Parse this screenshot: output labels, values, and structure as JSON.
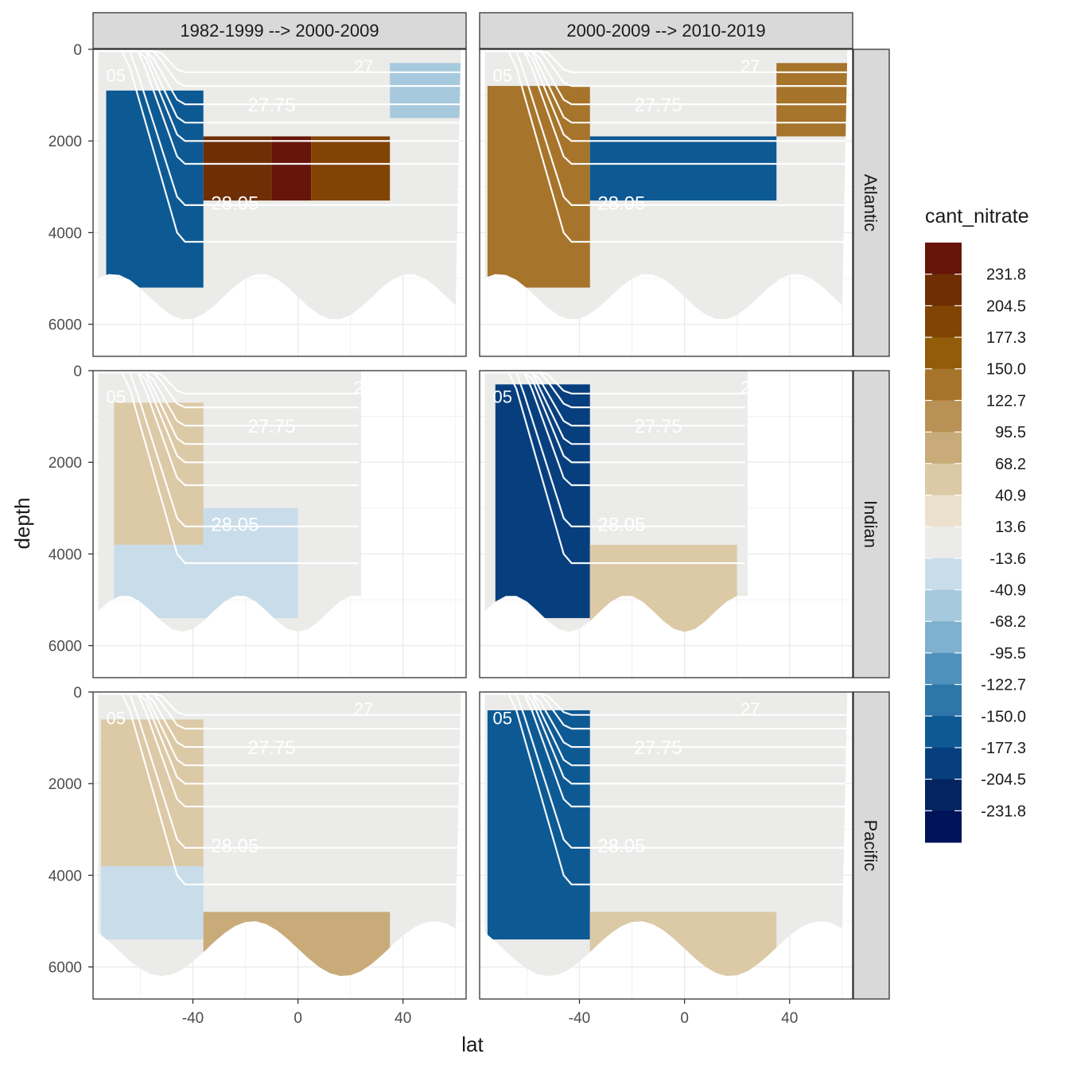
{
  "chart_data": {
    "type": "heatmap",
    "xlabel": "lat",
    "ylabel": "depth",
    "x_ticks": [
      -40,
      0,
      40
    ],
    "y_ticks": [
      0,
      2000,
      4000,
      6000
    ],
    "xlim": [
      -78,
      64
    ],
    "ylim": [
      0,
      6700
    ],
    "columns": [
      "1982-1999 --> 2000-2009",
      "2000-2009 --> 2010-2019"
    ],
    "rows": [
      "Atlantic",
      "Indian",
      "Pacific"
    ],
    "legend": {
      "title": "cant_nitrate",
      "labels": [
        "231.8",
        "204.5",
        "177.3",
        "150.0",
        "122.7",
        "95.5",
        "68.2",
        "40.9",
        "13.6",
        "-13.6",
        "-40.9",
        "-68.2",
        "-95.5",
        "-122.7",
        "-150.0",
        "-177.3",
        "-204.5",
        "-231.8"
      ],
      "colors": [
        "#67150a",
        "#6f2e04",
        "#824404",
        "#935c08",
        "#a6742a",
        "#b99154",
        "#c8ab78",
        "#dcc9a6",
        "#ece0cf",
        "#ebebe9",
        "#c9dcea",
        "#a6c9de",
        "#7fb0cf",
        "#4f92bb",
        "#2e76a9",
        "#0d5994",
        "#073f7e",
        "#04245f",
        "#02125a"
      ]
    },
    "contour_labels": {
      "upper": "27.75",
      "lower": "28.05",
      "edge": "05",
      "surface": "27"
    },
    "panels": [
      {
        "ocean": "Atlantic",
        "period": "1982-1999 --> 2000-2009",
        "cells": [
          {
            "lat": [
              -73,
              -36
            ],
            "depth": [
              900,
              5200
            ],
            "value": -165
          },
          {
            "lat": [
              -36,
              -10
            ],
            "depth": [
              1900,
              3300
            ],
            "value": 215
          },
          {
            "lat": [
              -10,
              5
            ],
            "depth": [
              1900,
              3300
            ],
            "value": 235
          },
          {
            "lat": [
              5,
              35
            ],
            "depth": [
              1900,
              3300
            ],
            "value": 185
          },
          {
            "lat": [
              35,
              62
            ],
            "depth": [
              300,
              1500
            ],
            "value": -45
          }
        ]
      },
      {
        "ocean": "Atlantic",
        "period": "2000-2009 --> 2010-2019",
        "cells": [
          {
            "lat": [
              -75,
              -36
            ],
            "depth": [
              800,
              5200
            ],
            "value": 135
          },
          {
            "lat": [
              -36,
              35
            ],
            "depth": [
              1900,
              3300
            ],
            "value": -160
          },
          {
            "lat": [
              35,
              62
            ],
            "depth": [
              300,
              1900
            ],
            "value": 125
          }
        ]
      },
      {
        "ocean": "Indian",
        "period": "1982-1999 --> 2000-2009",
        "cells": [
          {
            "lat": [
              -70,
              -36
            ],
            "depth": [
              700,
              3800
            ],
            "value": 55
          },
          {
            "lat": [
              -70,
              -36
            ],
            "depth": [
              3800,
              5400
            ],
            "value": -30
          },
          {
            "lat": [
              -36,
              0
            ],
            "depth": [
              3000,
              5400
            ],
            "value": -25
          }
        ]
      },
      {
        "ocean": "Indian",
        "period": "2000-2009 --> 2010-2019",
        "cells": [
          {
            "lat": [
              -72,
              -36
            ],
            "depth": [
              300,
              5400
            ],
            "value": -190
          },
          {
            "lat": [
              -36,
              20
            ],
            "depth": [
              3800,
              6000
            ],
            "value": 55
          }
        ]
      },
      {
        "ocean": "Pacific",
        "period": "1982-1999 --> 2000-2009",
        "cells": [
          {
            "lat": [
              -75,
              -36
            ],
            "depth": [
              600,
              3800
            ],
            "value": 60
          },
          {
            "lat": [
              -75,
              -36
            ],
            "depth": [
              3800,
              5400
            ],
            "value": -20
          },
          {
            "lat": [
              -36,
              35
            ],
            "depth": [
              4800,
              6700
            ],
            "value": 95
          }
        ]
      },
      {
        "ocean": "Pacific",
        "period": "2000-2009 --> 2010-2019",
        "cells": [
          {
            "lat": [
              -75,
              -36
            ],
            "depth": [
              400,
              5400
            ],
            "value": -175
          },
          {
            "lat": [
              -36,
              35
            ],
            "depth": [
              4800,
              6700
            ],
            "value": 50
          }
        ]
      }
    ]
  }
}
